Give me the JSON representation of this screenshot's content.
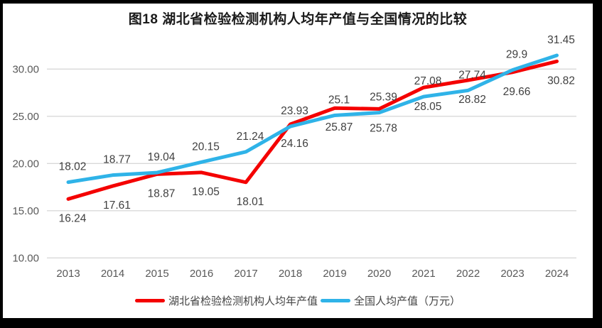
{
  "title": "图18 湖北省检验检测机构人均年产值与全国情况的比较",
  "colors": {
    "hubei_red": "#f40000",
    "national_blue": "#2fb3e8",
    "gridline": "#d9d9d9",
    "axis_text": "#595959",
    "data_label_text": "#404040",
    "frame": "#000000",
    "background": "#ffffff"
  },
  "chart_data": {
    "type": "line",
    "title": "图18 湖北省检验检测机构人均年产值与全国情况的比较",
    "categories": [
      "2013",
      "2014",
      "2015",
      "2016",
      "2017",
      "2018",
      "2019",
      "2020",
      "2021",
      "2022",
      "2023",
      "2024"
    ],
    "series": [
      {
        "name": "湖北省检验检测机构人均年产值",
        "color": "#f40000",
        "label_position": "below",
        "values": [
          16.24,
          17.61,
          18.87,
          19.05,
          18.01,
          24.16,
          25.87,
          25.78,
          28.05,
          28.82,
          29.66,
          30.82
        ]
      },
      {
        "name": "全国人均产值（万元）",
        "color": "#2fb3e8",
        "label_position": "above",
        "values": [
          18.02,
          18.77,
          19.04,
          20.15,
          21.24,
          23.93,
          25.1,
          25.39,
          27.08,
          27.74,
          29.9,
          31.45
        ]
      }
    ],
    "yticks": [
      10,
      15,
      20,
      25,
      30
    ],
    "ytick_labels": [
      "10.00",
      "15.00",
      "20.00",
      "25.00",
      "30.00"
    ],
    "ylim": [
      10,
      32.7
    ],
    "grid": "horizontal",
    "legend_position": "bottom",
    "xlabel": "",
    "ylabel": ""
  }
}
